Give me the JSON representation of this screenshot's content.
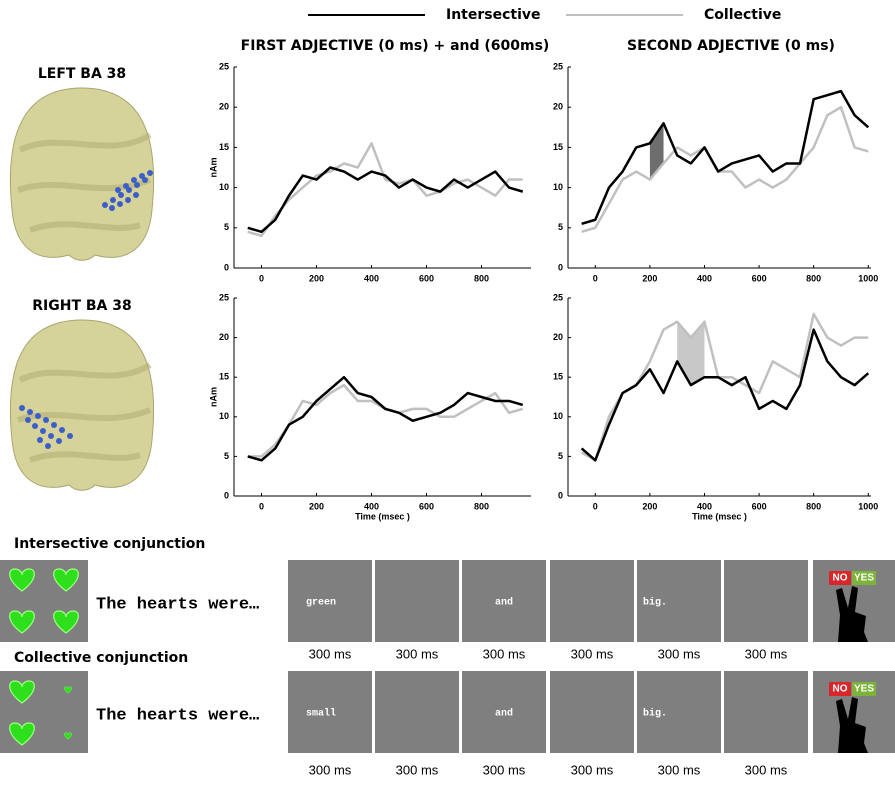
{
  "column_titles": [
    "FIRST ADJECTIVE (0 ms) + and (600ms)",
    "SECOND ADJECTIVE (0 ms)"
  ],
  "row_labels": [
    "LEFT BA 38",
    "RIGHT BA 38"
  ],
  "chart_data": [
    {
      "type": "line",
      "x": [
        -50,
        0,
        50,
        100,
        150,
        200,
        250,
        300,
        350,
        400,
        450,
        500,
        550,
        600,
        650,
        700,
        750,
        800,
        850,
        900,
        950
      ],
      "xlim": [
        -100,
        980
      ],
      "xticks": [
        0,
        200,
        400,
        600,
        800
      ],
      "ylim": [
        0,
        25
      ],
      "yticks": [
        0,
        5,
        10,
        15,
        20,
        25
      ],
      "ylabel": "nAm",
      "series": [
        {
          "name": "Intersective",
          "color": "#000000",
          "values": [
            5,
            4.5,
            6,
            9,
            11.5,
            11,
            12.5,
            12,
            11,
            12,
            11.5,
            10,
            11,
            10,
            9.5,
            11,
            10,
            11,
            12,
            10,
            9.5
          ]
        },
        {
          "name": "Collective",
          "color": "#c0c0c0",
          "values": [
            4.5,
            4,
            6.5,
            8.5,
            10,
            11.5,
            12,
            13,
            12.5,
            15.5,
            11,
            10.5,
            11,
            9,
            9.5,
            10.5,
            11,
            10,
            9,
            11,
            11
          ]
        }
      ]
    },
    {
      "type": "line",
      "x": [
        -50,
        0,
        50,
        100,
        150,
        200,
        250,
        300,
        350,
        400,
        450,
        500,
        550,
        600,
        650,
        700,
        750,
        800,
        850,
        900,
        950,
        1000
      ],
      "xlim": [
        -100,
        1010
      ],
      "xticks": [
        0,
        200,
        400,
        600,
        800,
        1000
      ],
      "ylim": [
        0,
        25
      ],
      "yticks": [
        0,
        5,
        10,
        15,
        20,
        25
      ],
      "series": [
        {
          "color": "#000000",
          "values": [
            5.5,
            6,
            10,
            12,
            15,
            15.5,
            18,
            14,
            13,
            15,
            12,
            13,
            13.5,
            14,
            12,
            13,
            13,
            21,
            21.5,
            22,
            19,
            17.5
          ]
        },
        {
          "color": "#c0c0c0",
          "values": [
            4.5,
            5,
            8,
            11,
            12,
            11,
            13,
            15,
            14,
            15,
            12,
            12,
            10,
            11,
            10,
            11,
            13,
            15,
            19,
            20,
            15,
            14.5
          ]
        }
      ],
      "shade": {
        "xlim": [
          190,
          260
        ],
        "color": "#6e6e6e"
      }
    },
    {
      "type": "line",
      "x": [
        -50,
        0,
        50,
        100,
        150,
        200,
        250,
        300,
        350,
        400,
        450,
        500,
        550,
        600,
        650,
        700,
        750,
        800,
        850,
        900,
        950
      ],
      "xlim": [
        -100,
        980
      ],
      "xticks": [
        0,
        200,
        400,
        600,
        800
      ],
      "ylim": [
        0,
        25
      ],
      "yticks": [
        0,
        5,
        10,
        15,
        20,
        25
      ],
      "ylabel": "nAm",
      "xlabel": "Time (msec )",
      "series": [
        {
          "color": "#000000",
          "values": [
            5,
            4.5,
            6,
            9,
            10,
            12,
            13.5,
            15,
            13,
            12.5,
            11,
            10.5,
            9.5,
            10,
            10.5,
            11.5,
            13,
            12.5,
            12,
            12,
            11.5
          ]
        },
        {
          "color": "#c0c0c0",
          "values": [
            5,
            5,
            6.5,
            9,
            12,
            11.5,
            13,
            14,
            12,
            12,
            11,
            10.5,
            11,
            11,
            10,
            10,
            11,
            12,
            13,
            10.5,
            11
          ]
        }
      ]
    },
    {
      "type": "line",
      "x": [
        -50,
        0,
        50,
        100,
        150,
        200,
        250,
        300,
        350,
        400,
        450,
        500,
        550,
        600,
        650,
        700,
        750,
        800,
        850,
        900,
        950,
        1000
      ],
      "xlim": [
        -100,
        1010
      ],
      "xticks": [
        0,
        200,
        400,
        600,
        800,
        1000
      ],
      "ylim": [
        0,
        25
      ],
      "yticks": [
        0,
        5,
        10,
        15,
        20,
        25
      ],
      "xlabel": "Time (msec )",
      "series": [
        {
          "color": "#000000",
          "values": [
            6,
            4.5,
            9,
            13,
            14,
            16,
            13,
            17,
            14,
            15,
            15,
            14,
            15,
            11,
            12,
            11,
            14,
            21,
            17,
            15,
            14,
            15.5
          ]
        },
        {
          "color": "#c0c0c0",
          "values": [
            5.5,
            4.5,
            10,
            13,
            14,
            17,
            21,
            22,
            20,
            22,
            15,
            15,
            14,
            13,
            17,
            16,
            15,
            23,
            20,
            19,
            20,
            20
          ]
        }
      ],
      "shade": {
        "xlim": [
          290,
          420
        ],
        "color": "#c8c8c8"
      }
    }
  ],
  "conditions": [
    {
      "title": "Intersective conjunction",
      "sentence": "The hearts were…",
      "frames": [
        {
          "word": "green",
          "duration": "300 ms"
        },
        {
          "duration": "300 ms"
        },
        {
          "word": "and",
          "duration": "300 ms"
        },
        {
          "duration": "300 ms"
        },
        {
          "word": "big.",
          "duration": "300 ms"
        },
        {
          "duration": "300 ms"
        }
      ],
      "response": [
        "NO",
        "YES"
      ]
    },
    {
      "title": "Collective conjunction",
      "sentence": "The hearts were…",
      "frames": [
        {
          "word": "small",
          "duration": "300 ms"
        },
        {
          "duration": "300 ms"
        },
        {
          "word": "and",
          "duration": "300 ms"
        },
        {
          "duration": "300 ms"
        },
        {
          "word": "big.",
          "duration": "300 ms"
        },
        {
          "duration": "300 ms"
        }
      ],
      "response": [
        "NO",
        "YES"
      ]
    }
  ]
}
